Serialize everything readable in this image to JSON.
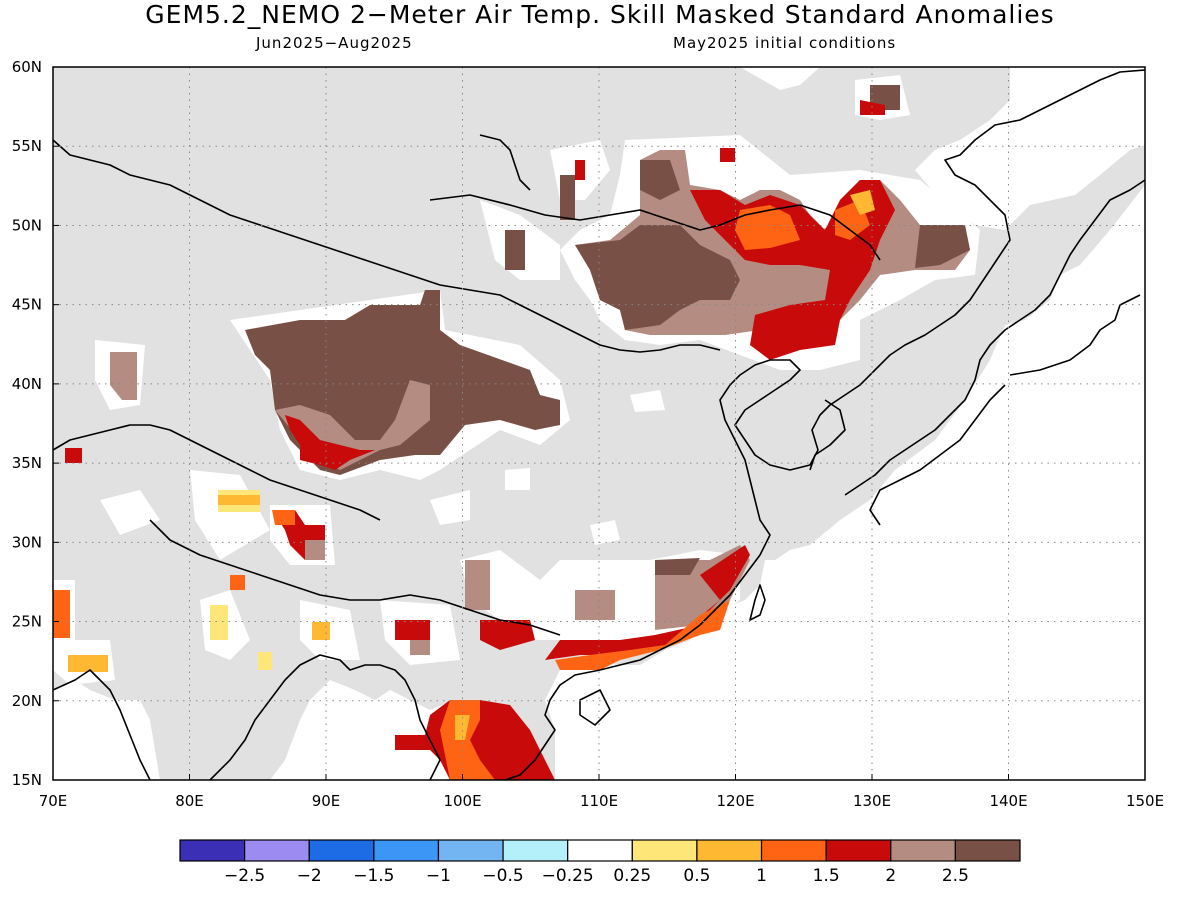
{
  "header": {
    "title": "GEM5.2_NEMO 2−Meter Air Temp. Skill Masked Standard Anomalies",
    "period": "Jun2025−Aug2025",
    "init": "May2025 initial conditions"
  },
  "map": {
    "lon_range": [
      70,
      150
    ],
    "lat_range": [
      15,
      60
    ],
    "lon_ticks": [
      "70E",
      "80E",
      "90E",
      "100E",
      "110E",
      "120E",
      "130E",
      "140E",
      "150E"
    ],
    "lat_ticks": [
      "15N",
      "20N",
      "25N",
      "30N",
      "35N",
      "40N",
      "45N",
      "50N",
      "55N",
      "60N"
    ],
    "grid": true,
    "mask_color": "#e1e1e1"
  },
  "colorbar": {
    "colors": [
      "#3a2fb5",
      "#9c8cf2",
      "#1e6be6",
      "#3c96f5",
      "#73b4f2",
      "#b4f0fa",
      "#ffffff",
      "#ffe678",
      "#ffb832",
      "#ff6414",
      "#c80a0a",
      "#b48c82",
      "#785046"
    ],
    "labels": [
      "−2.5",
      "−2",
      "−1.5",
      "−1",
      "−0.5",
      "−0.25",
      "0.25",
      "0.5",
      "1",
      "1.5",
      "2",
      "2.5"
    ]
  }
}
